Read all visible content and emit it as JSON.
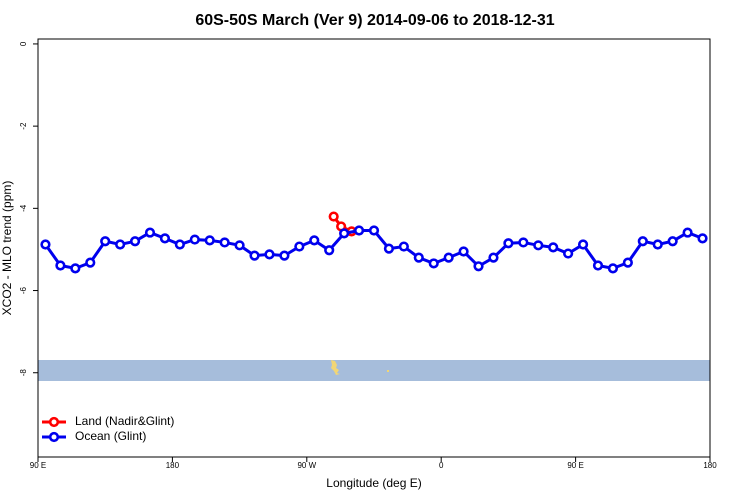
{
  "chart_data": {
    "type": "line",
    "title": "60S-50S March (Ver 9)   2014-09-06 to 2018-12-31",
    "x_label": "Longitude (deg E)",
    "y_label": "XCO2 - MLO trend (ppm)",
    "xlim": [
      90,
      540
    ],
    "xticks": [
      {
        "value": 90,
        "label": "90 E"
      },
      180,
      {
        "value": 270,
        "label": "90 W"
      },
      {
        "value": 360,
        "label": "0"
      },
      {
        "value": 450,
        "label": "90 E"
      },
      {
        "value": 540,
        "label": "180"
      }
    ],
    "ylim": [
      -10.05,
      0.12
    ],
    "yticks": [
      0,
      -2,
      -4,
      -6,
      -8
    ],
    "legend": "bottom-left",
    "series": [
      {
        "name": "Land (Nadir&Glint)",
        "color": "#ff0000",
        "x": [
          288,
          293,
          300
        ],
        "values": [
          -4.2,
          -4.44,
          -4.56
        ]
      },
      {
        "name": "Ocean (Glint)",
        "color": "#0000ee",
        "x": [
          95,
          105,
          115,
          125,
          135,
          145,
          155,
          165,
          175,
          185,
          195,
          205,
          215,
          225,
          235,
          245,
          255,
          265,
          275,
          285,
          295,
          305,
          315,
          325,
          335,
          345,
          355,
          365,
          375,
          385,
          395,
          405,
          415,
          425,
          435,
          445,
          455,
          465,
          475,
          485,
          495,
          505,
          515,
          525,
          535
        ],
        "values": [
          -4.88,
          -5.39,
          -5.46,
          -5.32,
          -4.8,
          -4.88,
          -4.8,
          -4.59,
          -4.73,
          -4.88,
          -4.76,
          -4.78,
          -4.83,
          -4.9,
          -5.15,
          -5.12,
          -5.15,
          -4.93,
          -4.78,
          -5.02,
          -4.61,
          -4.54,
          -4.54,
          -4.98,
          -4.93,
          -5.2,
          -5.34,
          -5.2,
          -5.05,
          -5.41,
          -5.2,
          -4.85,
          -4.83,
          -4.9,
          -4.95,
          -5.1,
          -4.88,
          -5.39,
          -5.46,
          -5.32,
          -4.8,
          -4.88,
          -4.8,
          -4.59,
          -4.73
        ]
      }
    ]
  }
}
